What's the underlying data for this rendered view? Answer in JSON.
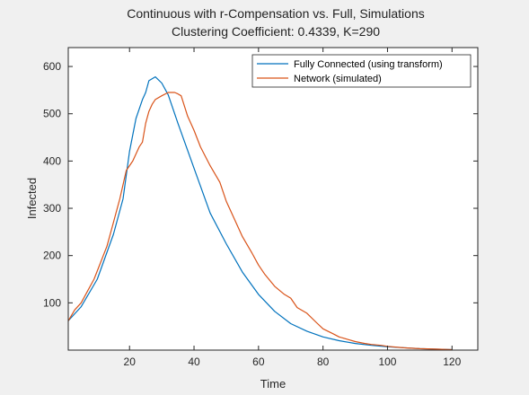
{
  "chart_data": {
    "type": "line",
    "title": "Continuous with r-Compensation vs. Full, Simulations",
    "subtitle": "Clustering Coefficient: 0.4339, K=290",
    "xlabel": "Time",
    "ylabel": "Infected",
    "xlim": [
      1,
      128
    ],
    "ylim": [
      0,
      640
    ],
    "xticks": [
      20,
      40,
      60,
      80,
      100,
      120
    ],
    "yticks": [
      100,
      200,
      300,
      400,
      500,
      600
    ],
    "grid": false,
    "legend_position": "top-right",
    "series": [
      {
        "name": "Fully Connected (using transform)",
        "color": "#0072BD",
        "x": [
          1,
          5,
          10,
          15,
          18,
          20,
          22,
          24,
          25,
          26,
          28,
          30,
          32,
          35,
          40,
          45,
          50,
          55,
          60,
          65,
          70,
          75,
          80,
          85,
          90,
          95,
          100,
          110,
          120
        ],
        "y": [
          62,
          92,
          150,
          245,
          320,
          420,
          490,
          530,
          545,
          570,
          578,
          565,
          540,
          480,
          385,
          290,
          225,
          165,
          118,
          82,
          56,
          40,
          28,
          20,
          14,
          10,
          7,
          3,
          1
        ]
      },
      {
        "name": "Network (simulated)",
        "color": "#D95319",
        "x": [
          1,
          3,
          5,
          7,
          9,
          11,
          13,
          15,
          17,
          19,
          21,
          23,
          24,
          25,
          26,
          27,
          28,
          30,
          32,
          34,
          35,
          36,
          38,
          40,
          42,
          45,
          48,
          50,
          52,
          55,
          58,
          60,
          62,
          65,
          68,
          70,
          72,
          75,
          78,
          80,
          83,
          85,
          88,
          90,
          93,
          95,
          98,
          100,
          105,
          110,
          115,
          120
        ],
        "y": [
          62,
          85,
          100,
          125,
          150,
          185,
          220,
          270,
          320,
          380,
          400,
          430,
          440,
          480,
          505,
          520,
          530,
          538,
          545,
          545,
          542,
          538,
          495,
          465,
          430,
          390,
          355,
          315,
          285,
          240,
          205,
          180,
          160,
          135,
          118,
          110,
          90,
          78,
          58,
          45,
          35,
          28,
          22,
          18,
          14,
          12,
          10,
          8,
          5,
          3,
          2,
          1
        ]
      }
    ]
  }
}
